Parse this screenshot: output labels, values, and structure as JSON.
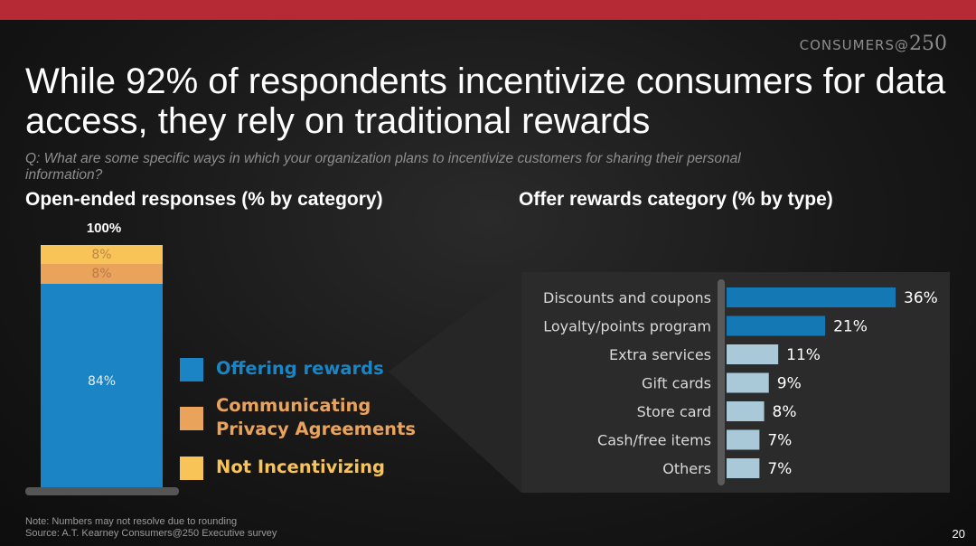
{
  "brand": {
    "text": "CONSUMERS",
    "at": "@",
    "num": "250"
  },
  "title": "While 92% of respondents incentivize consumers for data access, they rely on traditional rewards",
  "question": "Q: What are some specific ways in which your organization plans to incentivize customers for sharing their personal information?",
  "colors": {
    "blue": "#1a84c4",
    "orange": "#e9a35b",
    "yellow": "#f8c357",
    "light_bar": "#a9c8d8",
    "dark_blue": "#1478b5"
  },
  "chart_data": [
    {
      "type": "bar",
      "stacked": true,
      "title": "Open-ended responses (% by category)",
      "total_label": "100%",
      "categories": [
        "Open-ended responses"
      ],
      "series": [
        {
          "name": "Offering rewards",
          "values": [
            84
          ],
          "label": "84%",
          "color": "#1a84c4"
        },
        {
          "name": "Communicating\nPrivacy Agreements",
          "values": [
            8
          ],
          "label": "8%",
          "color": "#e9a35b"
        },
        {
          "name": "Not Incentivizing",
          "values": [
            8
          ],
          "label": "8%",
          "color": "#f8c357"
        }
      ],
      "ylim": [
        0,
        100
      ]
    },
    {
      "type": "bar",
      "orientation": "horizontal",
      "title": "Offer rewards category (% by type)",
      "categories": [
        "Discounts and coupons",
        "Loyalty/points program",
        "Extra services",
        "Gift cards",
        "Store card",
        "Cash/free items",
        "Others"
      ],
      "values": [
        36,
        21,
        11,
        9,
        8,
        7,
        7
      ],
      "value_labels": [
        "36%",
        "21%",
        "11%",
        "9%",
        "8%",
        "7%",
        "7%"
      ],
      "xlim": [
        0,
        36
      ]
    }
  ],
  "footer": {
    "note": "Note: Numbers may not resolve due to rounding",
    "source": "Source: A.T. Kearney Consumers@250 Executive survey",
    "page": "20"
  }
}
